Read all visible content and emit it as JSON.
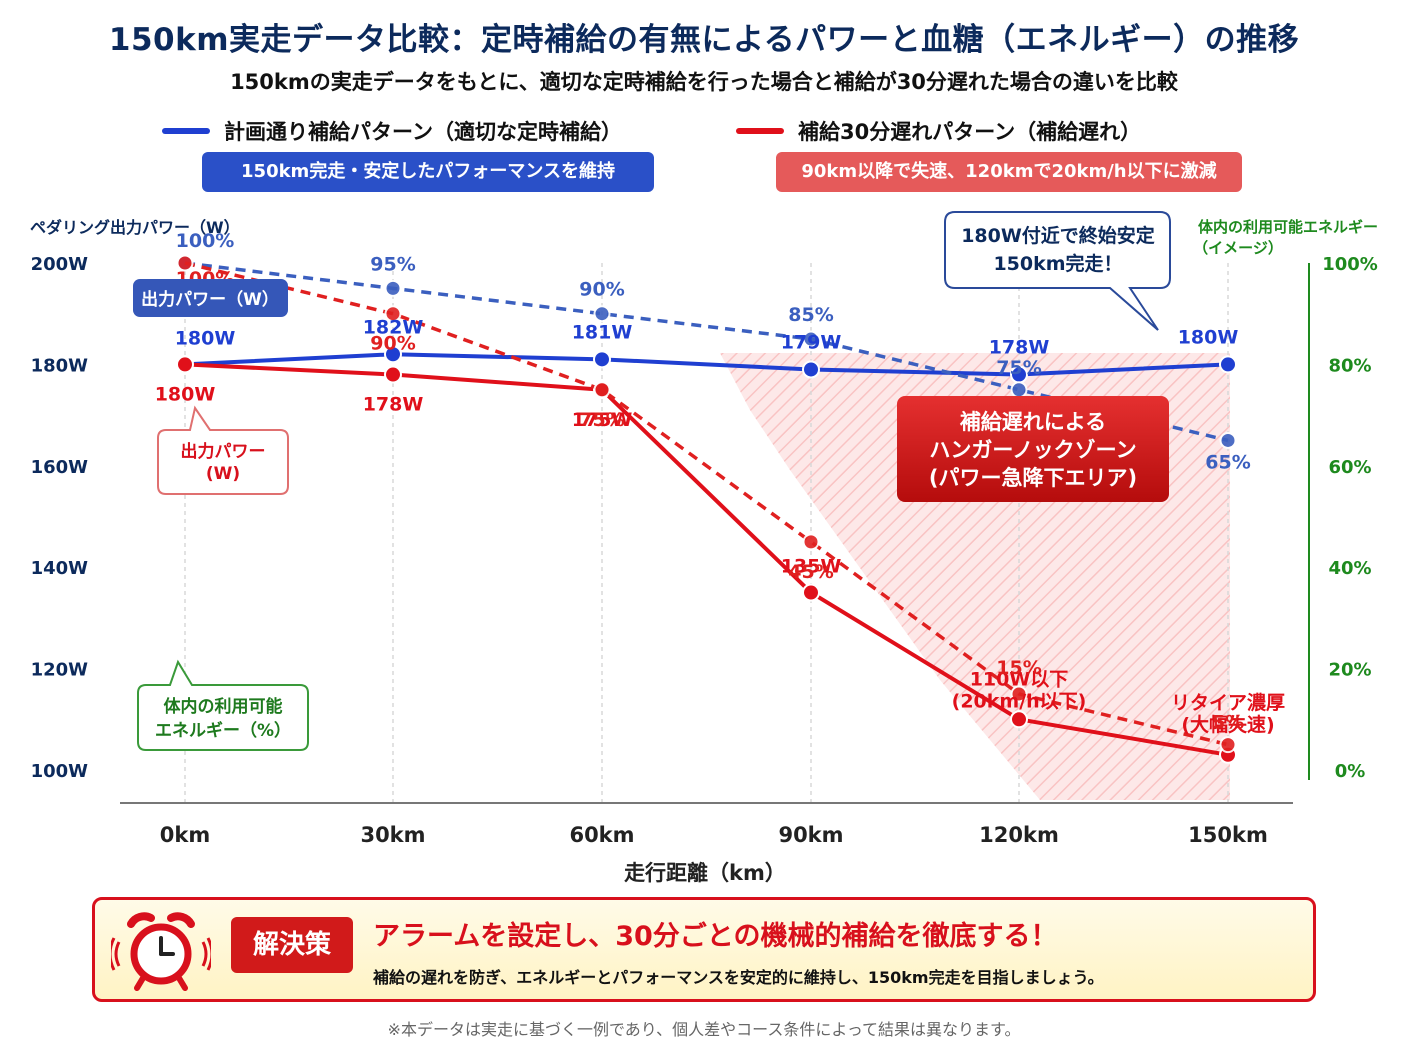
{
  "header": {
    "title": "150km実走データ比較：定時補給の有無によるパワーと血糖（エネルギー）の推移",
    "subtitle": "150kmの実走データをもとに、適切な定時補給を行った場合と補給が30分遅れた場合の違いを比較"
  },
  "legend": {
    "blue_label": "計画通り補給パターン（適切な定時補給）",
    "blue_pill": "150km完走・安定したパフォーマンスを維持",
    "red_label": "補給30分遅れパターン（補給遅れ）",
    "red_pill": "90km以降で失速、120kmで20km/h以下に激減"
  },
  "colors": {
    "blue": "#1f3fd1",
    "red": "#e0101a",
    "blue_dash": "#3b5fbf",
    "red_dash": "#e02020",
    "green": "#1e8a1e",
    "navy": "#0c2a5c"
  },
  "chart_data": {
    "type": "line",
    "x": [
      "0km",
      "30km",
      "60km",
      "90km",
      "120km",
      "150km"
    ],
    "xlabel": "走行距離（km）",
    "ylabel_left": "ペダリング出力パワー（W）",
    "ylabel_right": "体内の利用可能エネルギー（イメージ）",
    "ylim_left": [
      100,
      200
    ],
    "yticks_left": [
      "100W",
      "120W",
      "140W",
      "160W",
      "180W",
      "200W"
    ],
    "ylim_right": [
      0,
      100
    ],
    "yticks_right": [
      "0%",
      "20%",
      "40%",
      "60%",
      "80%",
      "100%"
    ],
    "grid": "vertical",
    "series": [
      {
        "axis": "left",
        "style": "solid",
        "color": "blue",
        "values": [
          180,
          182,
          181,
          179,
          178,
          180
        ],
        "labels": [
          "180W",
          "182W",
          "181W",
          "179W",
          "178W",
          "180W"
        ]
      },
      {
        "axis": "left",
        "style": "solid",
        "color": "red",
        "values": [
          180,
          178,
          175,
          135,
          110,
          103
        ],
        "labels": [
          "180W",
          "178W",
          "175W",
          "135W",
          "110W以下\n(20km/h以下)",
          "リタイア濃厚\n(大幅失速)"
        ]
      },
      {
        "axis": "right",
        "style": "dashed",
        "color": "blue_dash",
        "values": [
          100,
          95,
          90,
          85,
          75,
          65
        ],
        "labels": [
          "100%",
          "95%",
          "90%",
          "85%",
          "75%",
          "65%"
        ]
      },
      {
        "axis": "right",
        "style": "dashed",
        "color": "red_dash",
        "values": [
          100,
          90,
          75,
          45,
          15,
          5
        ],
        "labels": [
          "100%",
          "90%",
          "75%",
          "45%",
          "15%",
          "5%"
        ]
      }
    ],
    "annotations": {
      "power_tag": "出力パワー（W）",
      "power_callout": "出力パワー\n(W)",
      "energy_callout": "体内の利用可能\nエネルギー（%）",
      "bubble": "180W付近で終始安定\n150km完走！",
      "zone": "補給遅れによる\nハンガーノックゾーン\n(パワー急降下エリア)"
    }
  },
  "solution": {
    "badge": "解決策",
    "headline": "アラームを設定し、30分ごとの機械的補給を徹底する！",
    "text": "補給の遅れを防ぎ、エネルギーとパフォーマンスを安定的に維持し、150km完走を目指しましょう。",
    "icon": "alarm-clock-icon"
  },
  "footnote": "※本データは実走に基づく一例であり、個人差やコース条件によって結果は異なります。"
}
